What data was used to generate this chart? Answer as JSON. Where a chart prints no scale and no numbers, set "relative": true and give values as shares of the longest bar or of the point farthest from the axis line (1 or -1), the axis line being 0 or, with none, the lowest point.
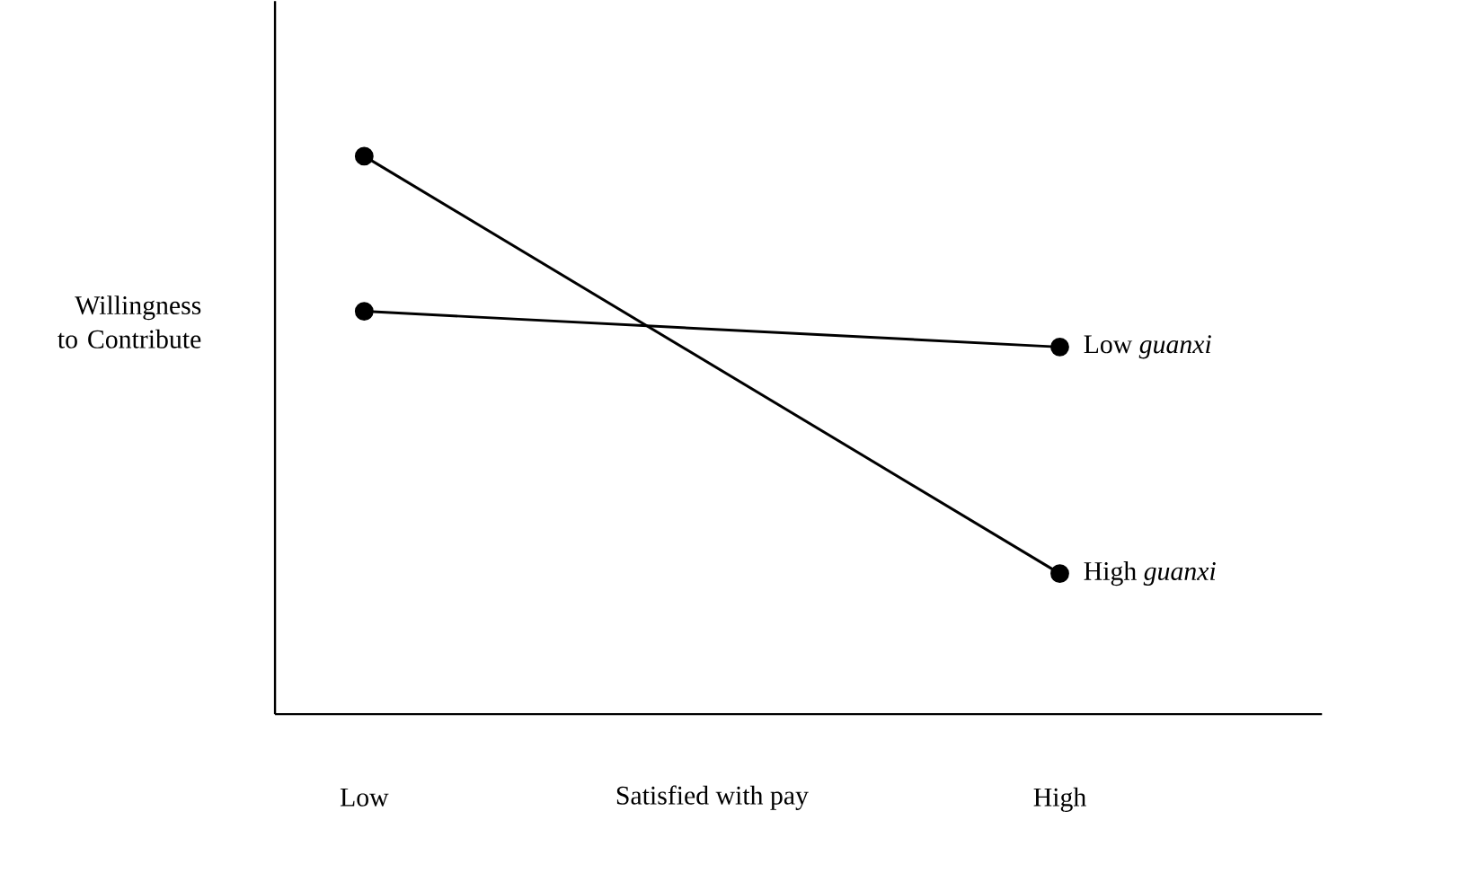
{
  "chart_data": {
    "type": "line",
    "xlabel": "Satisfied with pay",
    "ylabel": "Willingness to Contribute",
    "categories": [
      "Low",
      "High"
    ],
    "series": [
      {
        "name": "High *guanxi*",
        "color": "#000000",
        "values": [
          1,
          0.252
        ]
      },
      {
        "name": "Low *guanxi*",
        "color": "#000000",
        "values": [
          0.722,
          0.658
        ]
      }
    ],
    "relative": true,
    "marker": "circle",
    "line_style": "solid"
  }
}
